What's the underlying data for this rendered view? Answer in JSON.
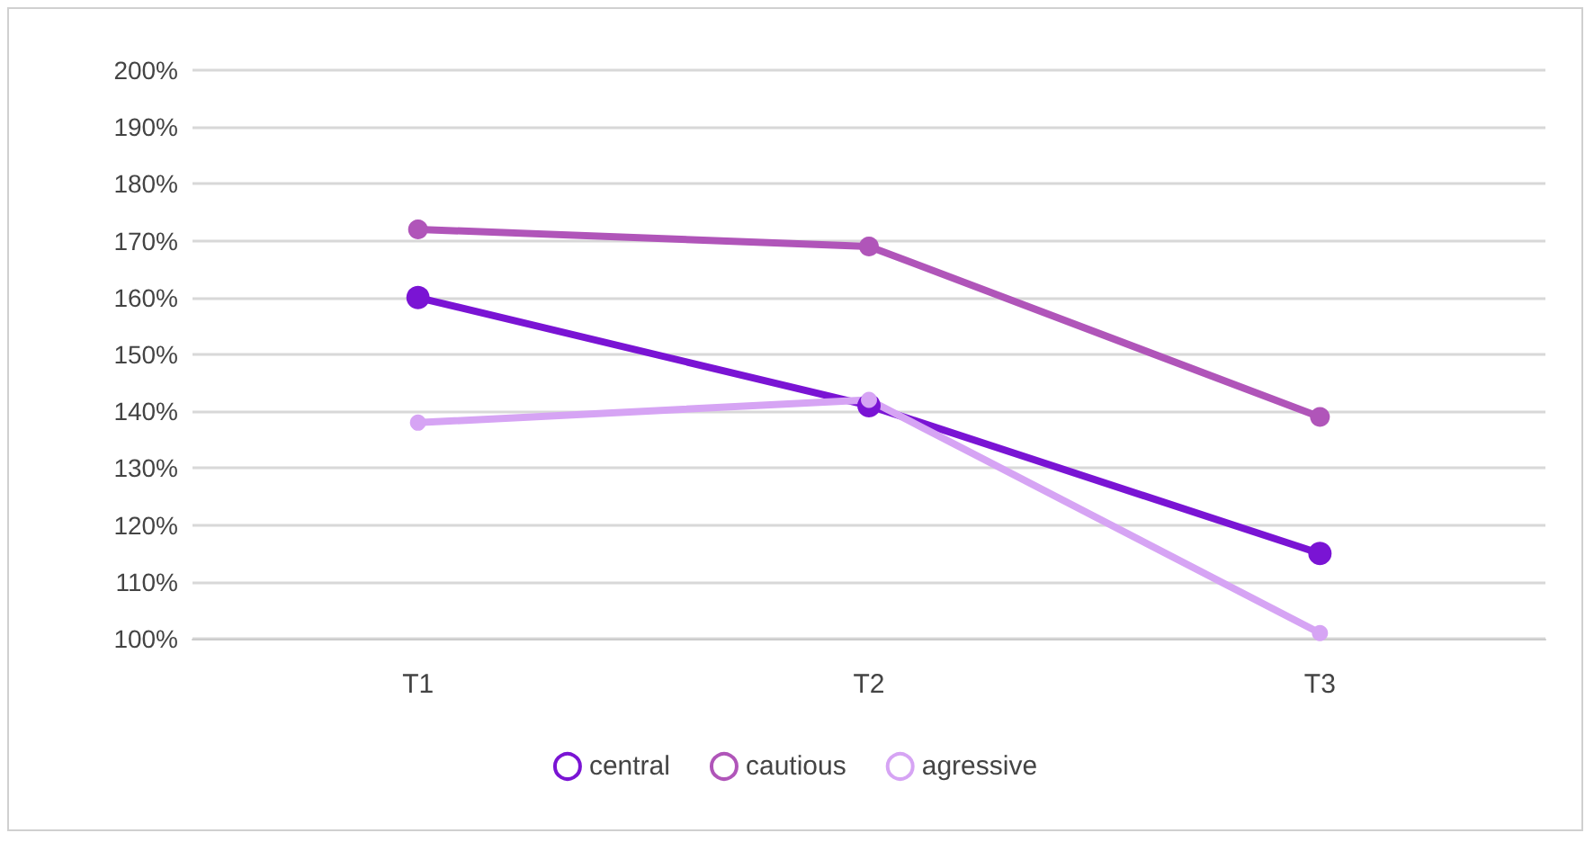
{
  "chart_data": {
    "type": "line",
    "categories": [
      "T1",
      "T2",
      "T3"
    ],
    "series": [
      {
        "name": "central",
        "color": "#7a14d4",
        "values": [
          160,
          141,
          115
        ]
      },
      {
        "name": "cautious",
        "color": "#b055b9",
        "values": [
          172,
          169,
          139
        ]
      },
      {
        "name": "agressive",
        "color": "#d6a4f4",
        "values": [
          138,
          142,
          101
        ]
      }
    ],
    "ylim": [
      100,
      200
    ],
    "yticks": [
      {
        "value": 100,
        "label": "100%"
      },
      {
        "value": 110,
        "label": "110%"
      },
      {
        "value": 120,
        "label": "120%"
      },
      {
        "value": 130,
        "label": "130%"
      },
      {
        "value": 140,
        "label": "140%"
      },
      {
        "value": 150,
        "label": "150%"
      },
      {
        "value": 160,
        "label": "160%"
      },
      {
        "value": 170,
        "label": "170%"
      },
      {
        "value": 180,
        "label": "180%"
      },
      {
        "value": 190,
        "label": "190%"
      },
      {
        "value": 200,
        "label": "200%"
      }
    ],
    "grid": "y",
    "legend": "bottom",
    "marker": "circle",
    "line_style": "solid"
  }
}
